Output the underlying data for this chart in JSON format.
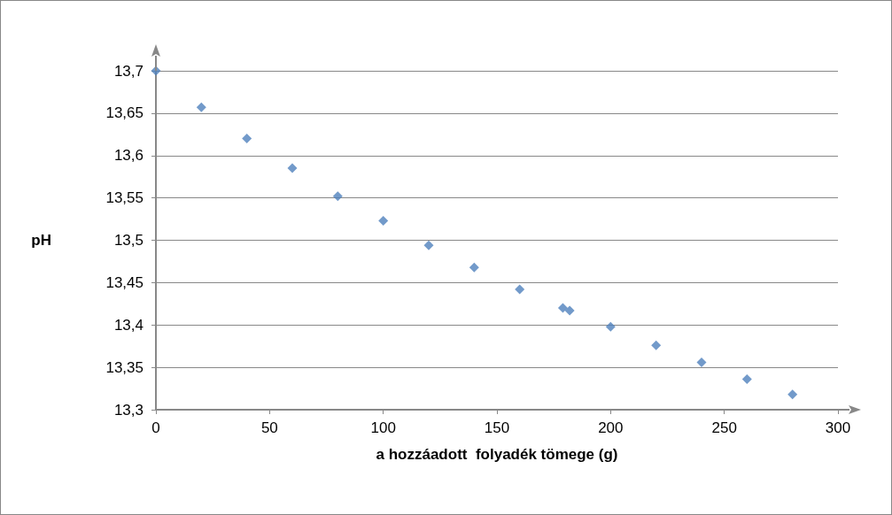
{
  "chart_data": {
    "type": "scatter",
    "xlabel": "a hozzáadott  folyadék tömege (g)",
    "ylabel": "pH",
    "x": [
      0,
      20,
      40,
      60,
      80,
      100,
      120,
      140,
      160,
      179,
      182,
      200,
      220,
      240,
      260,
      280
    ],
    "values": [
      13.7,
      13.657,
      13.62,
      13.585,
      13.552,
      13.523,
      13.494,
      13.468,
      13.442,
      13.42,
      13.417,
      13.398,
      13.376,
      13.356,
      13.336,
      13.318
    ],
    "color": "#4f81bd",
    "marker": "diamond",
    "grid": "y",
    "xlim": [
      0,
      300
    ],
    "xticks": [
      0,
      50,
      100,
      150,
      200,
      250,
      300
    ],
    "ylim": [
      13.3,
      13.7
    ],
    "yticks": [
      {
        "value": 13.3,
        "label": "13,3"
      },
      {
        "value": 13.35,
        "label": "13,35"
      },
      {
        "value": 13.4,
        "label": "13,4"
      },
      {
        "value": 13.45,
        "label": "13,45"
      },
      {
        "value": 13.5,
        "label": "13,5"
      },
      {
        "value": 13.55,
        "label": "13,55"
      },
      {
        "value": 13.6,
        "label": "13,6"
      },
      {
        "value": 13.65,
        "label": "13,65"
      },
      {
        "value": 13.7,
        "label": "13,7"
      }
    ]
  }
}
